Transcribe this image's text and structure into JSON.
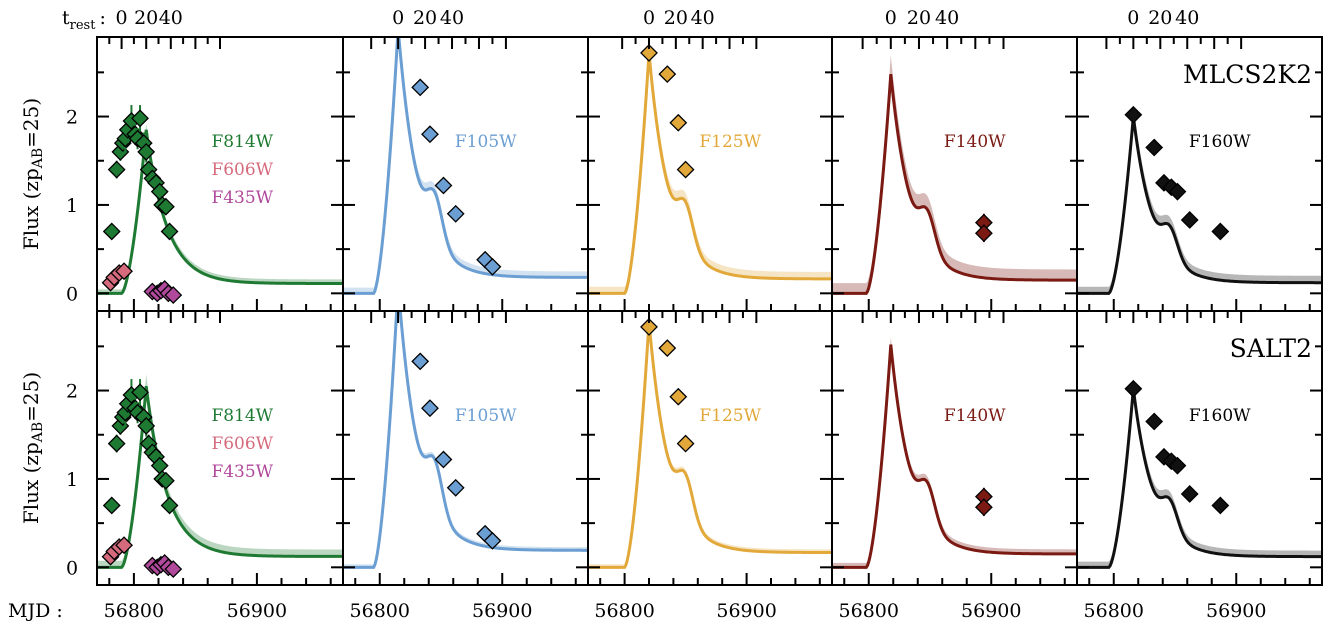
{
  "row_labels": {
    "trest_main": "t",
    "trest_sub": "rest",
    "trest_colon": ":",
    "mjd": "MJD :"
  },
  "ylabel": {
    "prefix": "Flux (zp",
    "sub": "AB",
    "suffix": "=25)"
  },
  "colors": {
    "F814W": "#1e7a32",
    "F606W": "#d56a7d",
    "F435W": "#b0499c",
    "F105W": "#6b9ed2",
    "F125W": "#e2a93a",
    "F140W": "#7a1a12",
    "F160W": "#111111"
  },
  "chart_data": {
    "type": "line",
    "rows": [
      "MLCS2K2",
      "SALT2"
    ],
    "x_mjd_ticks": [
      56800,
      56900
    ],
    "x_mjd_tick_labels": [
      "56800",
      "56900"
    ],
    "x_rest_ticks_labels": [
      "0",
      "20",
      "40"
    ],
    "ylim": [
      -0.2,
      2.9
    ],
    "yticks": [
      0,
      1,
      2
    ],
    "ytick_labels": [
      "0",
      "1",
      "2"
    ],
    "xlim": [
      56770,
      56970
    ],
    "panels": [
      {
        "band_labels": [
          "F814W",
          "F606W",
          "F435W"
        ],
        "rest_ticks_mjd": [
          56790.0,
          56810.0,
          56830.0
        ],
        "peak_mjd": 56810,
        "models": {
          "MLCS2K2": {
            "band": "F814W",
            "peak": 1.85,
            "band_width": 0.06
          },
          "SALT2": {
            "band": "F814W",
            "peak": 2.05,
            "band_width": 0.12
          }
        },
        "series": [
          {
            "name": "F814W",
            "x": [
              56782,
              56786,
              56789,
              56791,
              56793,
              56795,
              56798,
              56801,
              56803,
              56805,
              56808,
              56810,
              56812,
              56815,
              56818,
              56821,
              56823,
              56826,
              56829
            ],
            "y": [
              0.7,
              1.4,
              1.6,
              1.7,
              1.75,
              1.85,
              1.95,
              1.8,
              1.75,
              1.98,
              1.7,
              1.6,
              1.4,
              1.3,
              1.25,
              1.15,
              1.0,
              0.98,
              0.7
            ],
            "err": [
              0.05,
              0.1,
              0.1,
              0.12,
              0.15,
              0.15,
              0.18,
              0.12,
              0.12,
              0.15,
              0.12,
              0.12,
              0.1,
              0.1,
              0.08,
              0.08,
              0.07,
              0.06,
              0.05
            ]
          },
          {
            "name": "F606W",
            "x": [
              56781,
              56784,
              56788,
              56792
            ],
            "y": [
              0.12,
              0.18,
              0.23,
              0.25
            ],
            "err": [
              0.03,
              0.03,
              0.03,
              0.03
            ]
          },
          {
            "name": "F435W",
            "x": [
              56815,
              56819,
              56822,
              56825,
              56828,
              56832
            ],
            "y": [
              0.02,
              0.0,
              0.03,
              0.05,
              0.0,
              -0.02
            ],
            "err": [
              0.03,
              0.03,
              0.03,
              0.03,
              0.03,
              0.03
            ]
          }
        ]
      },
      {
        "band_labels": [
          "F105W"
        ],
        "rest_ticks_mjd": [
          56815.0,
          56837.0,
          56859.0
        ],
        "peak_mjd": 56815,
        "models": {
          "MLCS2K2": {
            "band": "F105W",
            "peak": 3.0,
            "band_width": 0.1
          },
          "SALT2": {
            "band": "F105W",
            "peak": 3.2,
            "band_width": 0.04
          }
        },
        "series": [
          {
            "name": "F105W",
            "x": [
              56833,
              56841,
              56852,
              56862,
              56886,
              56892
            ],
            "y": [
              2.33,
              1.8,
              1.22,
              0.9,
              0.38,
              0.3
            ],
            "err": [
              0.05,
              0.05,
              0.05,
              0.05,
              0.04,
              0.04
            ]
          }
        ]
      },
      {
        "band_labels": [
          "F125W"
        ],
        "rest_ticks_mjd": [
          56820.0,
          56842.0,
          56864.0
        ],
        "peak_mjd": 56820,
        "models": {
          "MLCS2K2": {
            "band": "F125W",
            "peak": 2.72,
            "band_width": 0.12
          },
          "SALT2": {
            "band": "F125W",
            "peak": 2.78,
            "band_width": 0.04
          }
        },
        "series": [
          {
            "name": "F125W",
            "x": [
              56820,
              56835,
              56844,
              56850
            ],
            "y": [
              2.72,
              2.48,
              1.93,
              1.4
            ],
            "err": [
              0.05,
              0.05,
              0.05,
              0.05
            ]
          }
        ]
      },
      {
        "band_labels": [
          "F140W"
        ],
        "rest_ticks_mjd": [
          56818.0,
          56841.0,
          56864.0
        ],
        "peak_mjd": 56818,
        "models": {
          "MLCS2K2": {
            "band": "F140W",
            "peak": 2.48,
            "band_width": 0.2
          },
          "SALT2": {
            "band": "F140W",
            "peak": 2.52,
            "band_width": 0.07
          }
        },
        "series": [
          {
            "name": "F140W",
            "x": [
              56894,
              56894
            ],
            "y": [
              0.8,
              0.68
            ],
            "err": [
              0.1,
              0.1
            ]
          }
        ]
      },
      {
        "band_labels": [
          "F160W"
        ],
        "rest_ticks_mjd": [
          56816.0,
          56838.0,
          56860.0
        ],
        "peak_mjd": 56816,
        "models": {
          "MLCS2K2": {
            "band": "F160W",
            "peak": 2.0,
            "band_width": 0.12
          },
          "SALT2": {
            "band": "F160W",
            "peak": 2.02,
            "band_width": 0.1
          }
        },
        "series": [
          {
            "name": "F160W",
            "x": [
              56816,
              56833,
              56841,
              56847,
              56852,
              56862,
              56887
            ],
            "y": [
              2.02,
              1.65,
              1.25,
              1.2,
              1.15,
              0.83,
              0.7
            ],
            "err": [
              0.08,
              0.07,
              0.07,
              0.07,
              0.06,
              0.06,
              0.05
            ]
          }
        ]
      }
    ]
  }
}
